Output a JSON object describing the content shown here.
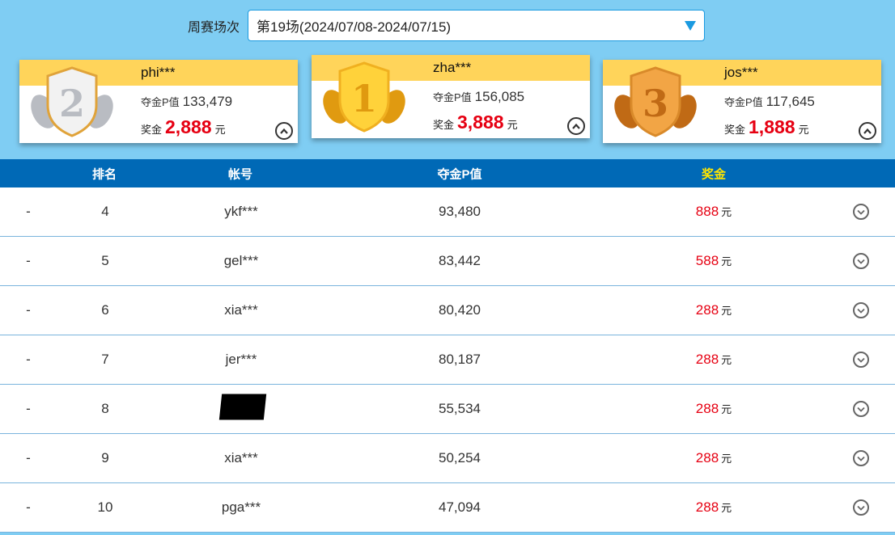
{
  "filter": {
    "label": "周赛场次",
    "value": "第19场(2024/07/08-2024/07/15)",
    "icon": "triangle-down-icon"
  },
  "podium": [
    {
      "rank": 2,
      "medal": "silver-medal",
      "name": "phi***",
      "pv_label": "夺金P值",
      "pv": "133,479",
      "prize_label": "奖金",
      "prize": "2,888",
      "unit": "元"
    },
    {
      "rank": 1,
      "medal": "gold-medal",
      "name": "zha***",
      "pv_label": "夺金P值",
      "pv": "156,085",
      "prize_label": "奖金",
      "prize": "3,888",
      "unit": "元"
    },
    {
      "rank": 3,
      "medal": "bronze-medal",
      "name": "jos***",
      "pv_label": "夺金P值",
      "pv": "117,645",
      "prize_label": "奖金",
      "prize": "1,888",
      "unit": "元"
    }
  ],
  "table": {
    "headers": {
      "rank": "排名",
      "account": "帐号",
      "pv": "夺金P值",
      "prize": "奖金"
    },
    "colors": {
      "header_bg": "#0069b6",
      "prize_header": "#ffe600",
      "prize": "#e60012"
    },
    "rows": [
      {
        "change": "-",
        "rank": "4",
        "account": "ykf***",
        "pv": "93,480",
        "prize": "888",
        "unit": "元"
      },
      {
        "change": "-",
        "rank": "5",
        "account": "gel***",
        "pv": "83,442",
        "prize": "588",
        "unit": "元"
      },
      {
        "change": "-",
        "rank": "6",
        "account": "xia***",
        "pv": "80,420",
        "prize": "288",
        "unit": "元"
      },
      {
        "change": "-",
        "rank": "7",
        "account": "jer***",
        "pv": "80,187",
        "prize": "288",
        "unit": "元"
      },
      {
        "change": "-",
        "rank": "8",
        "account": "",
        "redacted": true,
        "pv": "55,534",
        "prize": "288",
        "unit": "元"
      },
      {
        "change": "-",
        "rank": "9",
        "account": "xia***",
        "pv": "50,254",
        "prize": "288",
        "unit": "元"
      },
      {
        "change": "-",
        "rank": "10",
        "account": "pga***",
        "pv": "47,094",
        "prize": "288",
        "unit": "元"
      }
    ]
  }
}
